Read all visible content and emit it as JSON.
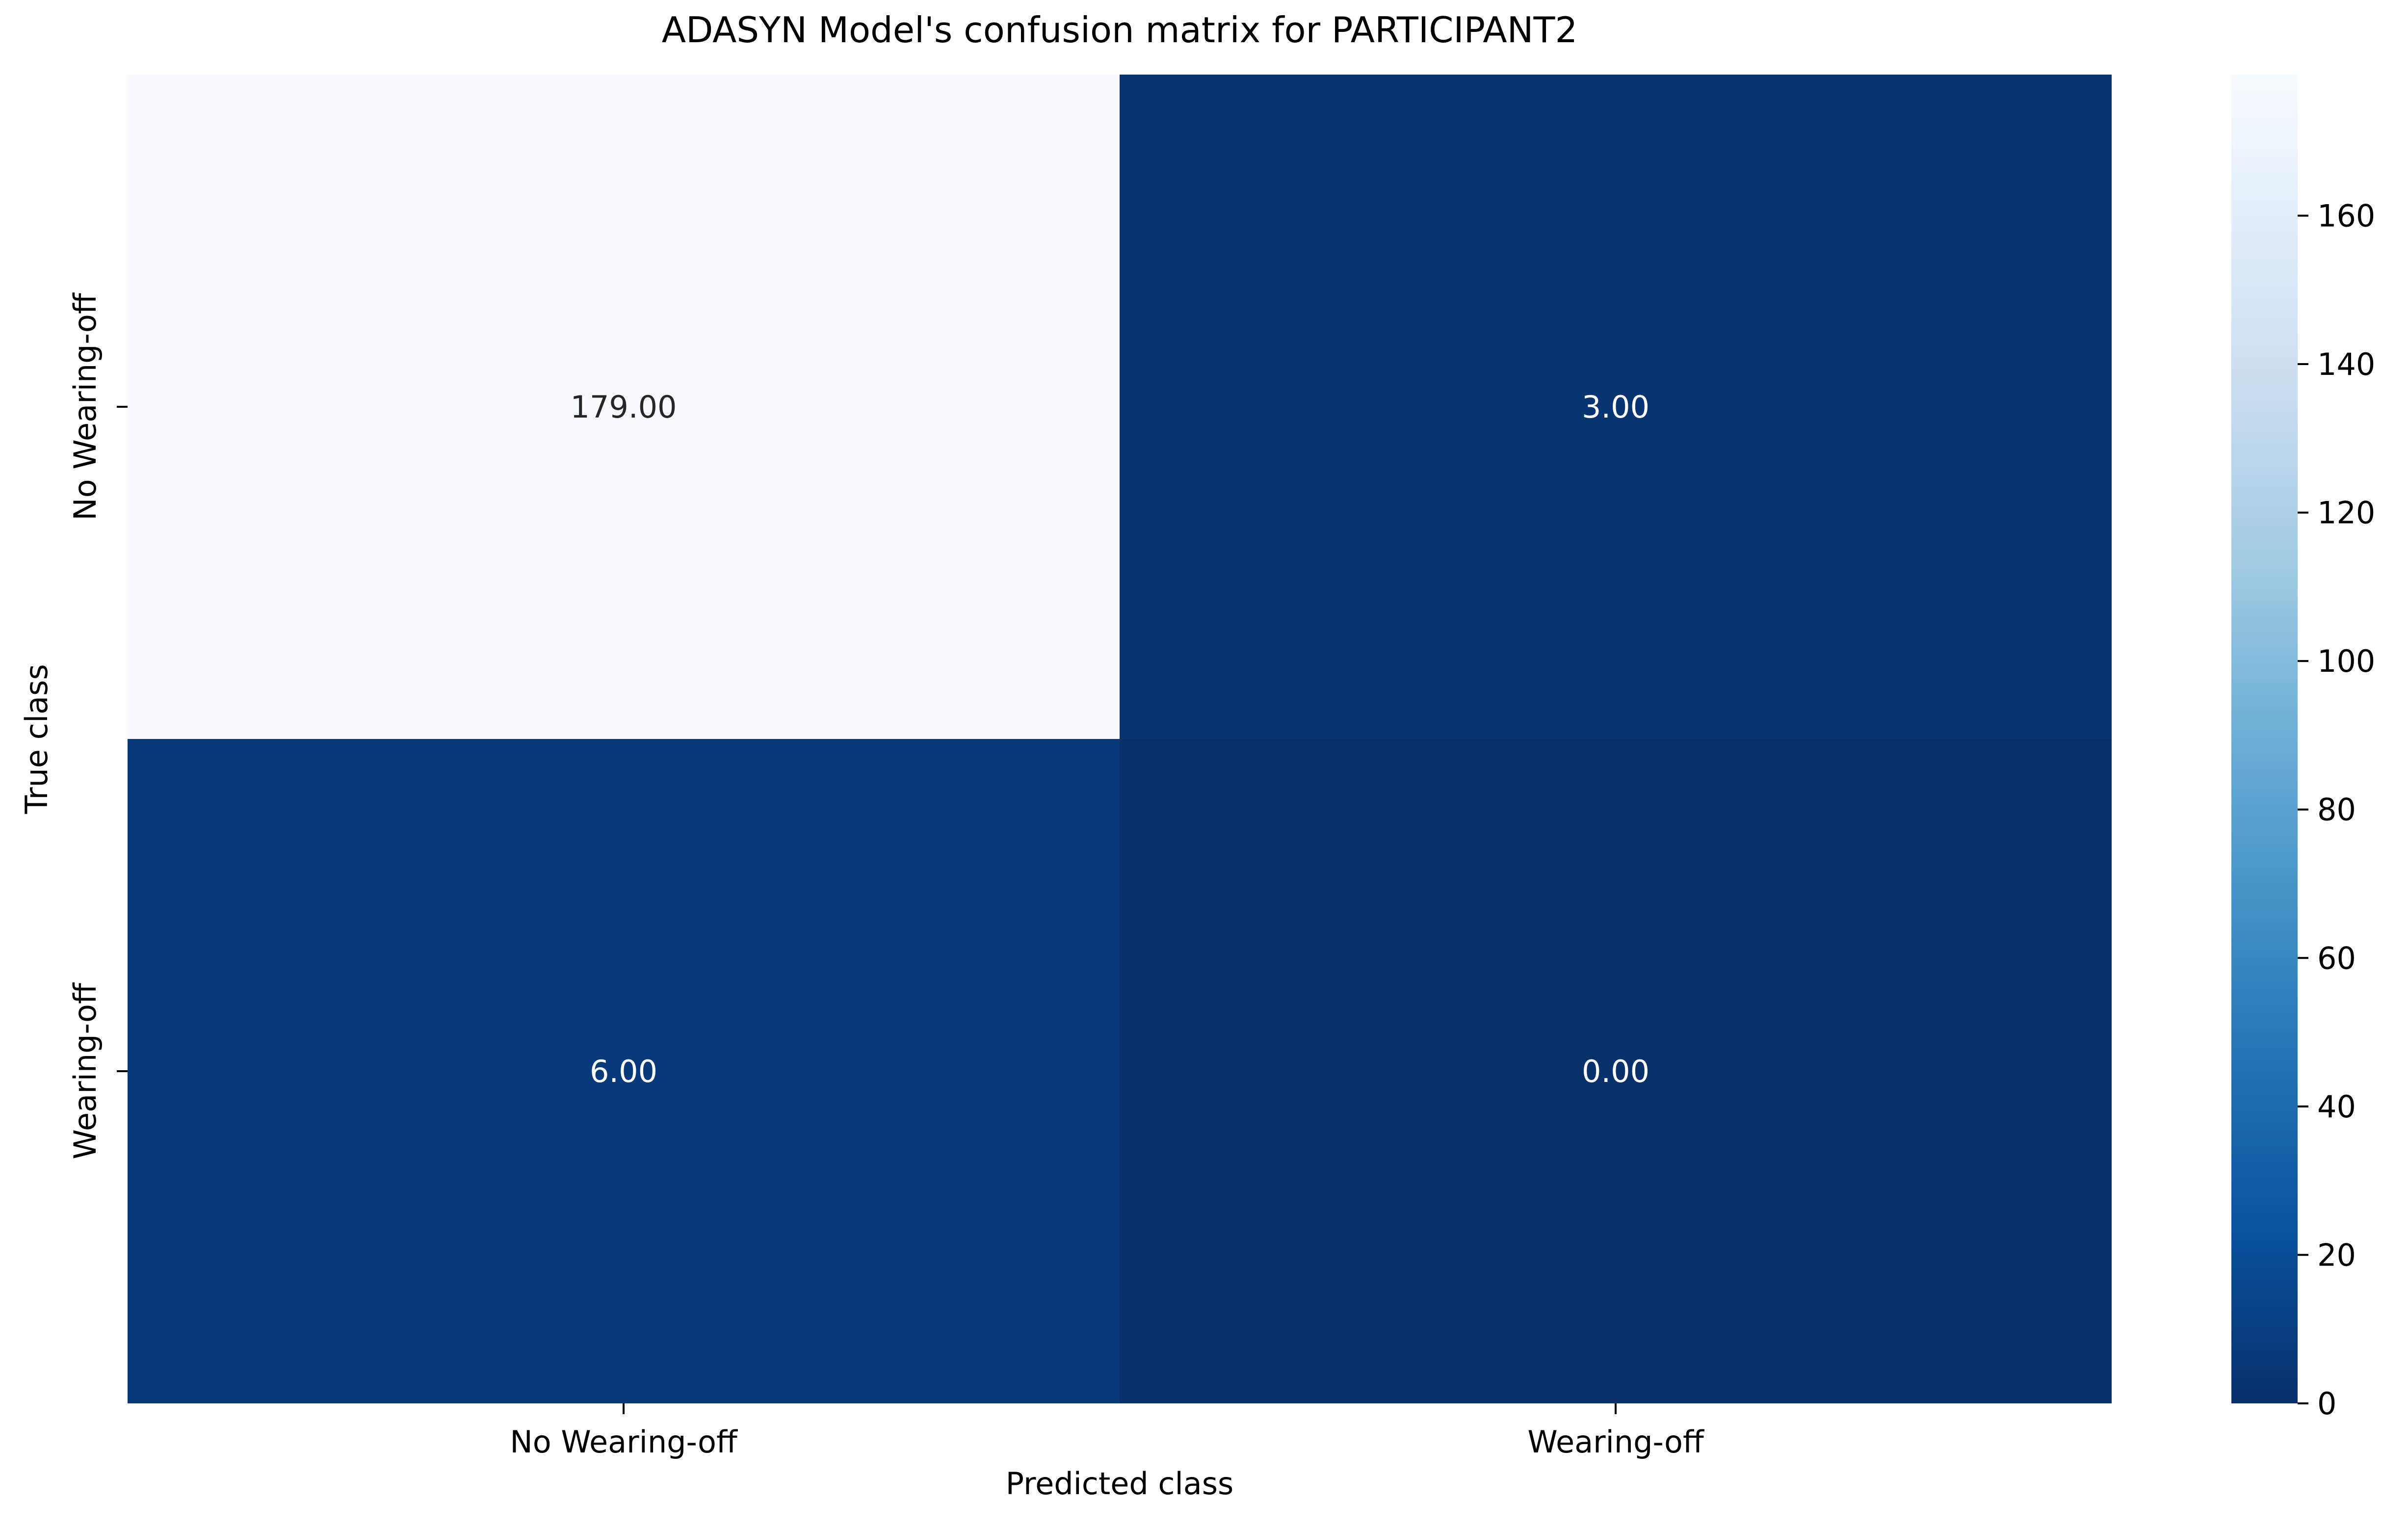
{
  "chart_data": {
    "type": "heatmap",
    "title": "ADASYN Model's confusion matrix for PARTICIPANT2",
    "xlabel": "Predicted class",
    "ylabel": "True class",
    "x_categories": [
      "No Wearing-off",
      "Wearing-off"
    ],
    "y_categories": [
      "No Wearing-off",
      "Wearing-off"
    ],
    "values": [
      [
        179,
        3
      ],
      [
        6,
        0
      ]
    ],
    "cell_labels": [
      [
        "179.00",
        "3.00"
      ],
      [
        "6.00",
        "0.00"
      ]
    ],
    "colormap": "Blues_r",
    "colorbar": {
      "range": [
        0,
        179
      ],
      "ticks": [
        0,
        20,
        40,
        60,
        80,
        100,
        120,
        140,
        160
      ],
      "tick_labels": [
        "0",
        "20",
        "40",
        "60",
        "80",
        "100",
        "120",
        "140",
        "160"
      ]
    },
    "colors": {
      "low": "#08306b",
      "high": "#f7fbff"
    }
  }
}
